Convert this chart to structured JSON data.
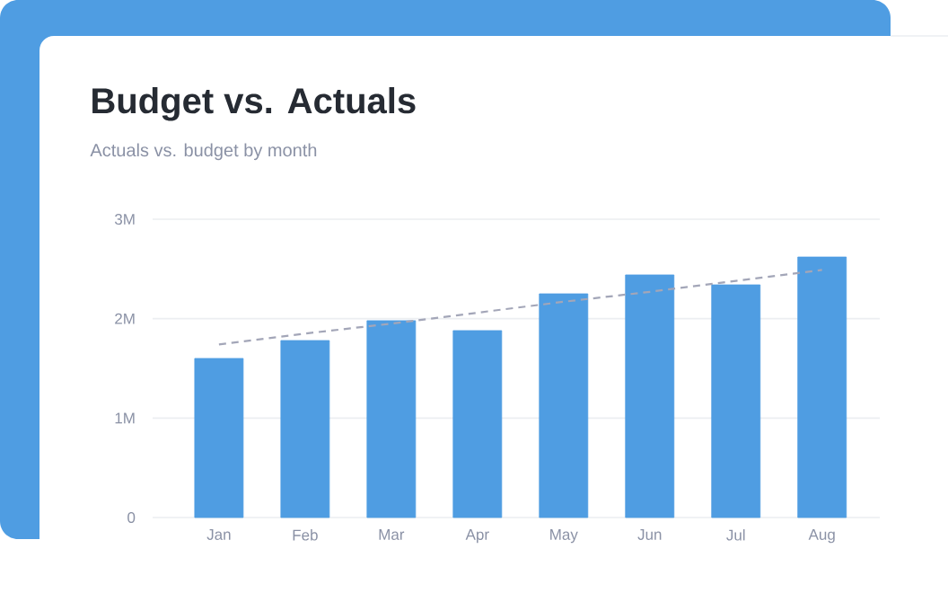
{
  "chart_data": {
    "type": "bar",
    "title": "Budget vs. Actuals",
    "subtitle": "Actuals vs. budget by month",
    "categories": [
      "Jan",
      "Feb",
      "Mar",
      "Apr",
      "May",
      "Jun",
      "Jul",
      "Aug"
    ],
    "series": [
      {
        "color": "#4f9de2",
        "values": [
          1.6,
          1.78,
          1.98,
          1.88,
          2.25,
          2.44,
          2.34,
          2.62
        ]
      },
      {
        "type": "line",
        "color": "#a3a6b8",
        "line_style": "dashed",
        "values": [
          1.74,
          1.85,
          1.95,
          2.06,
          2.17,
          2.27,
          2.38,
          2.49
        ]
      }
    ],
    "ylim": [
      0,
      3
    ],
    "yticks": [
      0,
      {
        "value": 1,
        "label": "1M"
      },
      {
        "value": 2,
        "label": "2M"
      },
      {
        "value": 3,
        "label": "3M"
      }
    ],
    "grid": "y"
  }
}
